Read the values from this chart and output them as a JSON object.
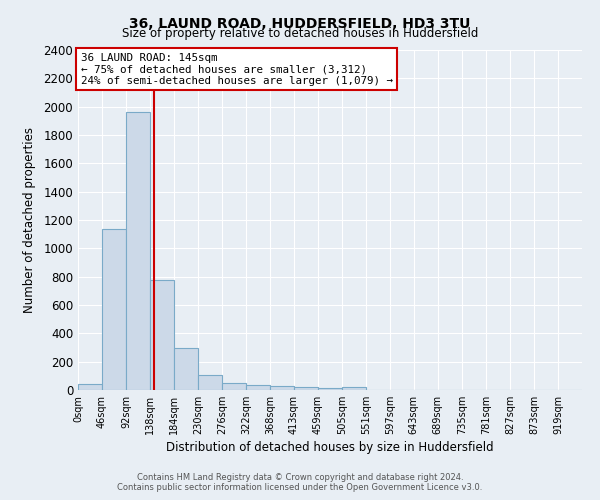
{
  "title": "36, LAUND ROAD, HUDDERSFIELD, HD3 3TU",
  "subtitle": "Size of property relative to detached houses in Huddersfield",
  "xlabel": "Distribution of detached houses by size in Huddersfield",
  "ylabel": "Number of detached properties",
  "bar_color": "#ccd9e8",
  "bar_edge_color": "#7aaac8",
  "red_line_x": 145,
  "bin_edges": [
    0,
    46,
    92,
    138,
    184,
    230,
    276,
    322,
    368,
    413,
    459,
    505,
    551,
    597,
    643,
    689,
    735,
    781,
    827,
    873,
    919,
    965
  ],
  "bar_heights": [
    40,
    1140,
    1960,
    780,
    300,
    105,
    50,
    35,
    25,
    20,
    15,
    20,
    0,
    0,
    0,
    0,
    0,
    0,
    0,
    0,
    0
  ],
  "tick_labels": [
    "0sqm",
    "46sqm",
    "92sqm",
    "138sqm",
    "184sqm",
    "230sqm",
    "276sqm",
    "322sqm",
    "368sqm",
    "413sqm",
    "459sqm",
    "505sqm",
    "551sqm",
    "597sqm",
    "643sqm",
    "689sqm",
    "735sqm",
    "781sqm",
    "827sqm",
    "873sqm",
    "919sqm"
  ],
  "ylim": [
    0,
    2400
  ],
  "yticks": [
    0,
    200,
    400,
    600,
    800,
    1000,
    1200,
    1400,
    1600,
    1800,
    2000,
    2200,
    2400
  ],
  "annotation_title": "36 LAUND ROAD: 145sqm",
  "annotation_line1": "← 75% of detached houses are smaller (3,312)",
  "annotation_line2": "24% of semi-detached houses are larger (1,079) →",
  "annotation_box_color": "#ffffff",
  "annotation_box_edge_color": "#cc0000",
  "footer_line1": "Contains HM Land Registry data © Crown copyright and database right 2024.",
  "footer_line2": "Contains public sector information licensed under the Open Government Licence v3.0.",
  "bg_color": "#e8eef4",
  "grid_color": "#ffffff"
}
